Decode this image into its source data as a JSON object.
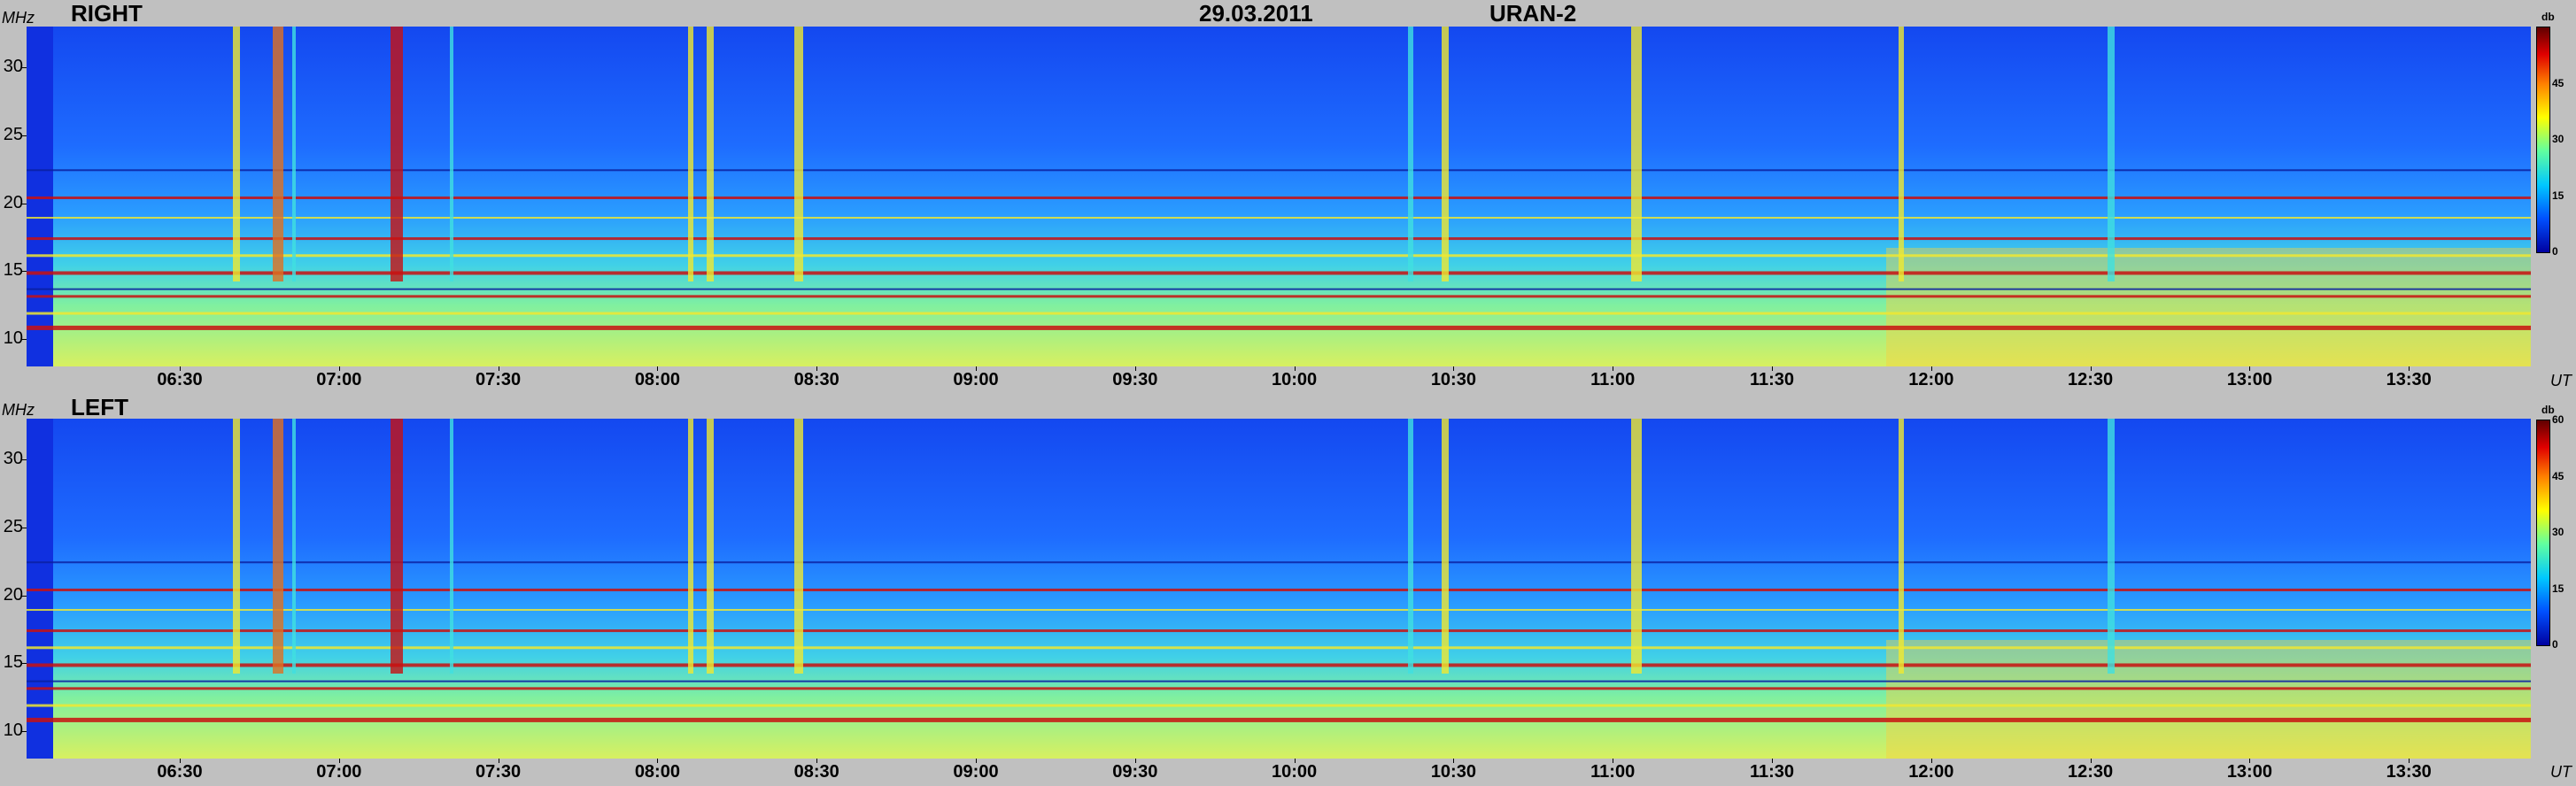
{
  "header": {
    "date": "29.03.2011",
    "instrument": "URAN-2"
  },
  "axis": {
    "y_unit": "MHz",
    "x_unit": "UT",
    "colorbar_unit": "db"
  },
  "colors": {
    "background": "#1c5cff",
    "lane_yellow": "#f0e830",
    "lane_red": "#c81010",
    "burst_cyan": "#40e0e0"
  },
  "chart_data": [
    {
      "type": "heatmap",
      "title": "RIGHT",
      "ylabel": "MHz",
      "xlabel": "UT",
      "yticks": [
        "10",
        "15",
        "20",
        "25",
        "30"
      ],
      "ylim": [
        8,
        33
      ],
      "xticks": [
        "06:30",
        "07:00",
        "07:30",
        "08:00",
        "08:30",
        "09:00",
        "09:30",
        "10:00",
        "10:30",
        "11:00",
        "11:30",
        "12:00",
        "12:30",
        "13:00",
        "13:30"
      ],
      "colorbar": {
        "label": "db",
        "ticks": [
          "0",
          "15",
          "30",
          "45"
        ],
        "range": [
          0,
          60
        ]
      }
    },
    {
      "type": "heatmap",
      "title": "LEFT",
      "ylabel": "MHz",
      "xlabel": "UT",
      "yticks": [
        "10",
        "15",
        "20",
        "25",
        "30"
      ],
      "ylim": [
        8,
        33
      ],
      "xticks": [
        "06:30",
        "07:00",
        "07:30",
        "08:00",
        "08:30",
        "09:00",
        "09:30",
        "10:00",
        "10:30",
        "11:00",
        "11:30",
        "12:00",
        "12:30",
        "13:00",
        "13:30"
      ],
      "colorbar": {
        "label": "db",
        "ticks": [
          "0",
          "15",
          "30",
          "45",
          "60"
        ],
        "range": [
          0,
          60
        ]
      }
    }
  ]
}
